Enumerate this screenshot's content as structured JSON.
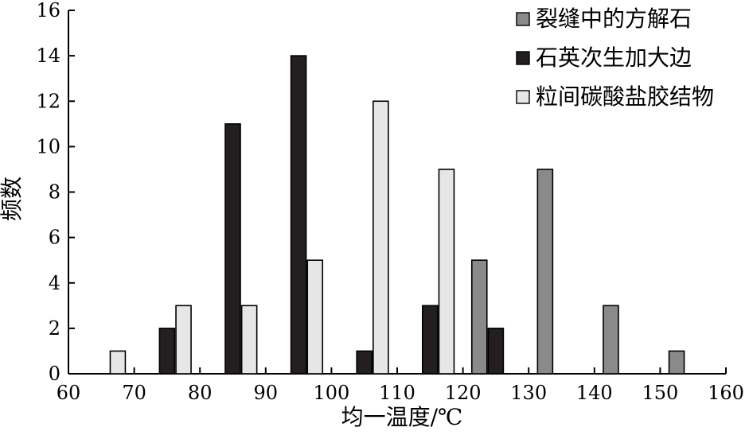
{
  "chart_data": {
    "type": "bar",
    "xlabel": "均一温度/℃",
    "ylabel": "频数",
    "x_ticks": [
      60,
      70,
      80,
      90,
      100,
      110,
      120,
      130,
      140,
      150,
      160
    ],
    "y_ticks": [
      0,
      2,
      4,
      6,
      8,
      10,
      12,
      14,
      16
    ],
    "xlim": [
      60,
      160
    ],
    "ylim": [
      0,
      16
    ],
    "legend_position": "top-right",
    "series": [
      {
        "name": "裂缝中的方解石",
        "color": "#8a8a8a",
        "bars": [
          {
            "x": 122.5,
            "value": 5
          },
          {
            "x": 132.5,
            "value": 9
          },
          {
            "x": 142.5,
            "value": 3
          },
          {
            "x": 152.5,
            "value": 1
          }
        ]
      },
      {
        "name": "石英次生加大边",
        "color": "#231f20",
        "bars": [
          {
            "x": 75,
            "value": 2
          },
          {
            "x": 85,
            "value": 11
          },
          {
            "x": 95,
            "value": 14
          },
          {
            "x": 105,
            "value": 1
          },
          {
            "x": 115,
            "value": 3
          },
          {
            "x": 125,
            "value": 2
          }
        ]
      },
      {
        "name": "粒间碳酸盐胶结物",
        "color": "#e6e6e6",
        "bars": [
          {
            "x": 67.5,
            "value": 1
          },
          {
            "x": 77.5,
            "value": 3
          },
          {
            "x": 87.5,
            "value": 3
          },
          {
            "x": 97.5,
            "value": 5
          },
          {
            "x": 107.5,
            "value": 12
          },
          {
            "x": 117.5,
            "value": 9
          }
        ]
      }
    ]
  }
}
